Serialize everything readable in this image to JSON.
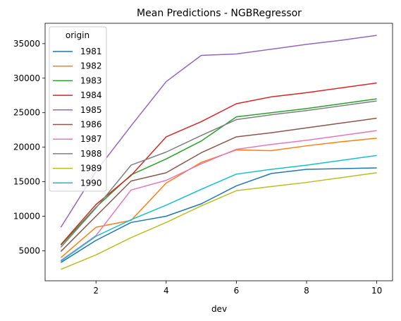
{
  "chart_data": {
    "type": "line",
    "title": "Mean Predictions - NGBRegressor",
    "xlabel": "dev",
    "ylabel": "",
    "xlim": [
      0.55,
      10.45
    ],
    "ylim": [
      650,
      37950
    ],
    "xticks": [
      2,
      4,
      6,
      8,
      10
    ],
    "yticks": [
      5000,
      10000,
      15000,
      20000,
      25000,
      30000,
      35000
    ],
    "grid": false,
    "legend": {
      "title": "origin",
      "placement": "top-left"
    },
    "x": [
      1,
      2,
      3,
      4,
      5,
      6,
      7,
      8,
      9,
      10
    ],
    "series": [
      {
        "name": "1981",
        "color": "#1f77b4",
        "values": [
          3300,
          6500,
          9100,
          10000,
          11800,
          14400,
          16200,
          16800,
          16900,
          17000
        ]
      },
      {
        "name": "1982",
        "color": "#ff7f0e",
        "values": [
          4000,
          8400,
          9400,
          14800,
          17800,
          19600,
          19500,
          20200,
          20800,
          21300
        ]
      },
      {
        "name": "1983",
        "color": "#2ca02c",
        "values": [
          5800,
          11300,
          16000,
          18300,
          20900,
          24400,
          25000,
          25600,
          26300,
          27000
        ]
      },
      {
        "name": "1984",
        "color": "#d62728",
        "values": [
          5900,
          11700,
          15900,
          21500,
          23700,
          26300,
          27300,
          27900,
          28600,
          29300
        ]
      },
      {
        "name": "1985",
        "color": "#9467bd",
        "values": [
          8400,
          16500,
          23100,
          29500,
          33300,
          33500,
          34200,
          34900,
          35500,
          36200
        ]
      },
      {
        "name": "1986",
        "color": "#8c564b",
        "values": [
          4900,
          10000,
          15100,
          16300,
          19200,
          21500,
          22100,
          22800,
          23500,
          24200
        ]
      },
      {
        "name": "1987",
        "color": "#e377c2",
        "values": [
          3600,
          7200,
          13800,
          15200,
          17600,
          19700,
          20400,
          21000,
          21700,
          22400
        ]
      },
      {
        "name": "1988",
        "color": "#7f7f7f",
        "values": [
          5500,
          11200,
          17400,
          19300,
          21700,
          24000,
          24700,
          25300,
          26000,
          26700
        ]
      },
      {
        "name": "1989",
        "color": "#bcbd22",
        "values": [
          2300,
          4400,
          6900,
          9100,
          11500,
          13700,
          14300,
          14900,
          15600,
          16300
        ]
      },
      {
        "name": "1990",
        "color": "#17becf",
        "values": [
          3500,
          7100,
          9500,
          11600,
          13900,
          16100,
          16800,
          17400,
          18100,
          18800
        ]
      }
    ]
  }
}
